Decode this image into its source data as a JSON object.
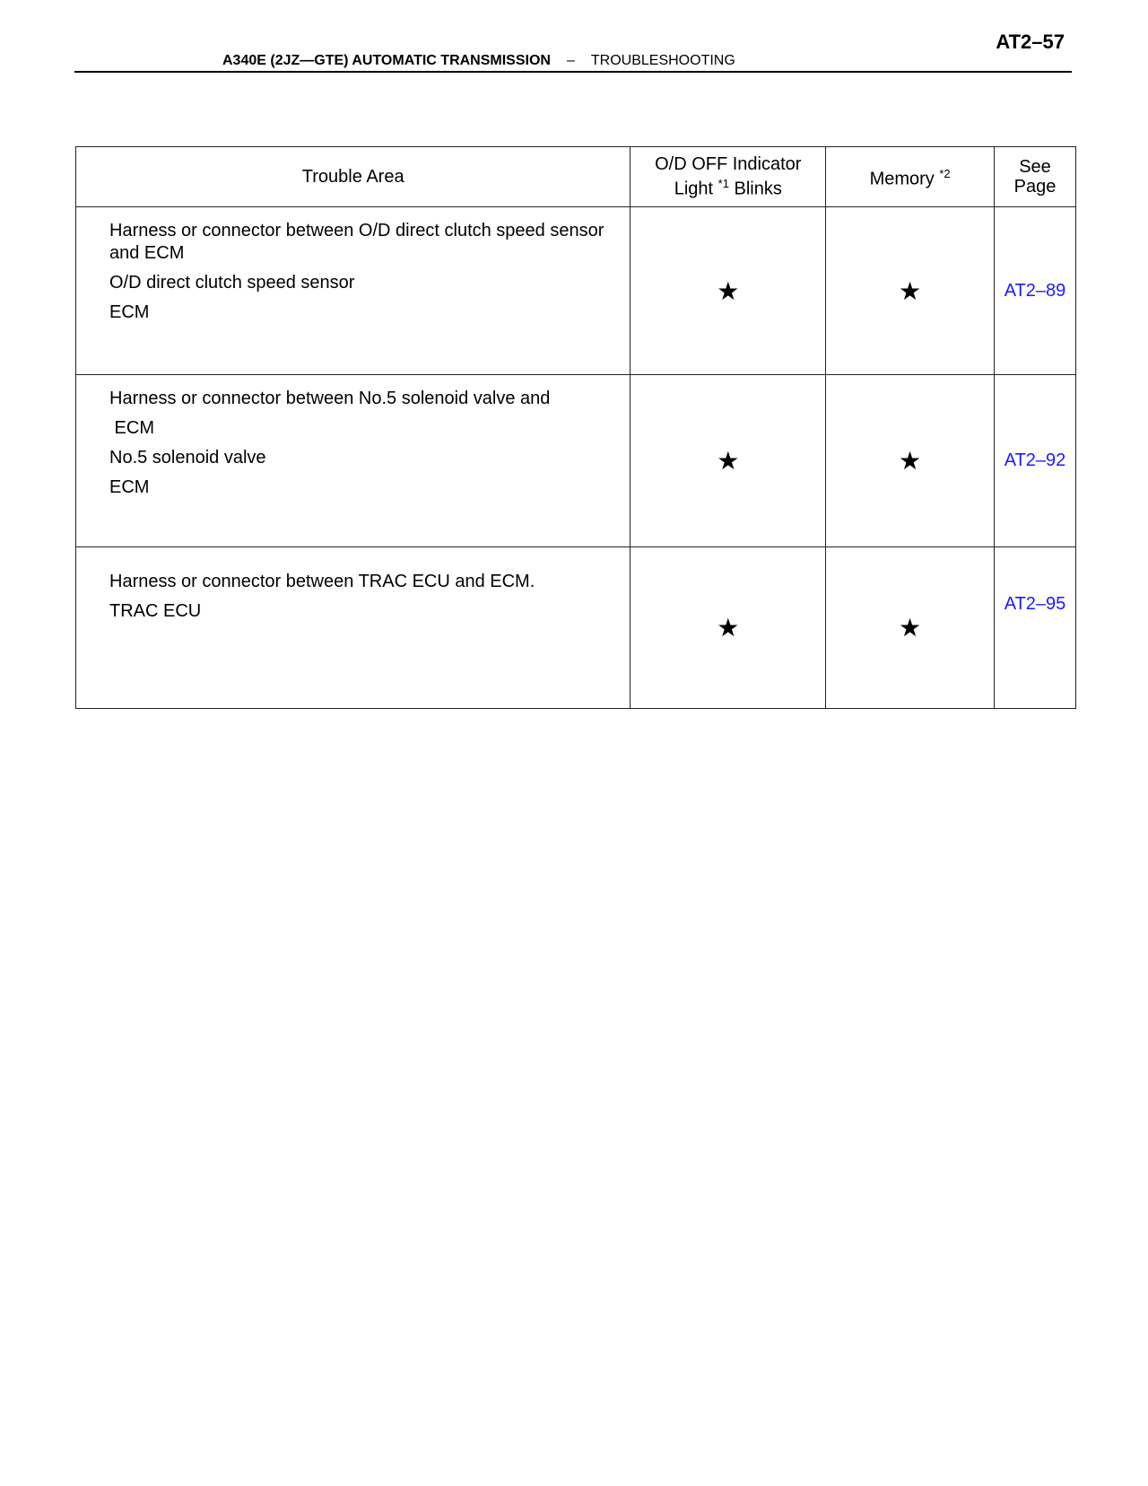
{
  "header": {
    "page_number": "AT2–57",
    "section": "A340E (2JZ—GTE) AUTOMATIC TRANSMISSION",
    "separator": "–",
    "subsection": "TROUBLESHOOTING"
  },
  "table": {
    "columns": {
      "area": "Trouble Area",
      "od_line1": "O/D OFF Indicator",
      "od_line2a": "Light ",
      "od_sup": "*1",
      "od_line2b": " Blinks",
      "memory": "Memory ",
      "memory_sup": "*2",
      "see1": "See",
      "see2": "Page"
    },
    "rows": [
      {
        "areas": [
          "Harness or connector between O/D direct clutch speed sensor and ECM",
          "O/D direct clutch speed sensor",
          "ECM"
        ],
        "od": "★",
        "memory": "★",
        "page": "AT2–89"
      },
      {
        "areas": [
          "Harness or connector between No.5 solenoid valve and",
          " ECM",
          "No.5 solenoid valve",
          "ECM"
        ],
        "od": "★",
        "memory": "★",
        "page": "AT2–92"
      },
      {
        "areas": [
          "Harness or connector between TRAC ECU and ECM.",
          "TRAC ECU"
        ],
        "od": "★",
        "memory": "★",
        "page": "AT2–95"
      }
    ]
  },
  "colors": {
    "link": "#1a1aff"
  }
}
